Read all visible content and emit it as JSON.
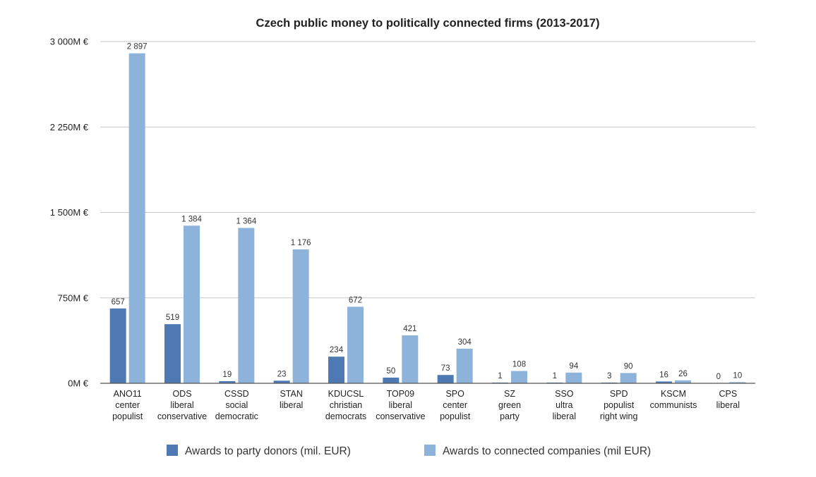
{
  "chart_data": {
    "type": "bar",
    "title": "Czech public money to politically connected firms (2013-2017)",
    "xlabel": "",
    "ylabel": "",
    "ylim": [
      0,
      3000
    ],
    "yticks": [
      0,
      750,
      1500,
      2250,
      3000
    ],
    "ytick_labels": [
      "0M €",
      "750M €",
      "1 500M €",
      "2 250M €",
      "3 000M €"
    ],
    "grid": true,
    "legend_position": "bottom",
    "categories": [
      {
        "name": "ANO11",
        "sub1": "center",
        "sub2": "populist"
      },
      {
        "name": "ODS",
        "sub1": "liberal",
        "sub2": "conservative"
      },
      {
        "name": "CSSD",
        "sub1": "social",
        "sub2": "democratic"
      },
      {
        "name": "STAN",
        "sub1": "liberal",
        "sub2": ""
      },
      {
        "name": "KDUCSL",
        "sub1": "christian",
        "sub2": "democrats"
      },
      {
        "name": "TOP09",
        "sub1": "liberal",
        "sub2": "conservative"
      },
      {
        "name": "SPO",
        "sub1": "center",
        "sub2": "populist"
      },
      {
        "name": "SZ",
        "sub1": "green",
        "sub2": "party"
      },
      {
        "name": "SSO",
        "sub1": "ultra",
        "sub2": "liberal"
      },
      {
        "name": "SPD",
        "sub1": "populist",
        "sub2": "right wing"
      },
      {
        "name": "KSCM",
        "sub1": "communists",
        "sub2": ""
      },
      {
        "name": "CPS",
        "sub1": "liberal",
        "sub2": ""
      }
    ],
    "series": [
      {
        "name": "Awards to party donors (mil. EUR)",
        "color": "#4f79b2",
        "values": [
          657,
          519,
          19,
          23,
          234,
          50,
          73,
          1,
          1,
          3,
          16,
          0
        ],
        "labels": [
          "657",
          "519",
          "19",
          "23",
          "234",
          "50",
          "73",
          "1",
          "1",
          "3",
          "16",
          "0"
        ]
      },
      {
        "name": "Awards to connected companies (mil EUR)",
        "color": "#8db3da",
        "values": [
          2897,
          1384,
          1364,
          1176,
          672,
          421,
          304,
          108,
          94,
          90,
          26,
          10
        ],
        "labels": [
          "2 897",
          "1 384",
          "1 364",
          "1 176",
          "672",
          "421",
          "304",
          "108",
          "94",
          "90",
          "26",
          "10"
        ]
      }
    ]
  }
}
